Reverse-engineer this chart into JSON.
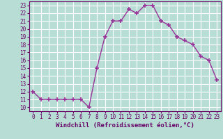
{
  "x": [
    0,
    1,
    2,
    3,
    4,
    5,
    6,
    7,
    8,
    9,
    10,
    11,
    12,
    13,
    14,
    15,
    16,
    17,
    18,
    19,
    20,
    21,
    22,
    23
  ],
  "y": [
    12,
    11,
    11,
    11,
    11,
    11,
    11,
    10,
    15,
    19,
    21,
    21,
    22.5,
    22,
    23,
    23,
    21,
    20.5,
    19,
    18.5,
    18,
    16.5,
    16,
    13.5
  ],
  "line_color": "#993399",
  "marker": "+",
  "marker_size": 4,
  "xlim": [
    -0.5,
    23.5
  ],
  "ylim": [
    9.5,
    23.5
  ],
  "yticks": [
    10,
    11,
    12,
    13,
    14,
    15,
    16,
    17,
    18,
    19,
    20,
    21,
    22,
    23
  ],
  "xticks": [
    0,
    1,
    2,
    3,
    4,
    5,
    6,
    7,
    8,
    9,
    10,
    11,
    12,
    13,
    14,
    15,
    16,
    17,
    18,
    19,
    20,
    21,
    22,
    23
  ],
  "xlabel": "Windchill (Refroidissement éolien,°C)",
  "background_color": "#b8ddd4",
  "grid_color": "#ffffff",
  "tick_fontsize": 5.5,
  "label_fontsize": 6.5,
  "line_width": 1.0,
  "spine_color": "#660066",
  "text_color": "#660066"
}
